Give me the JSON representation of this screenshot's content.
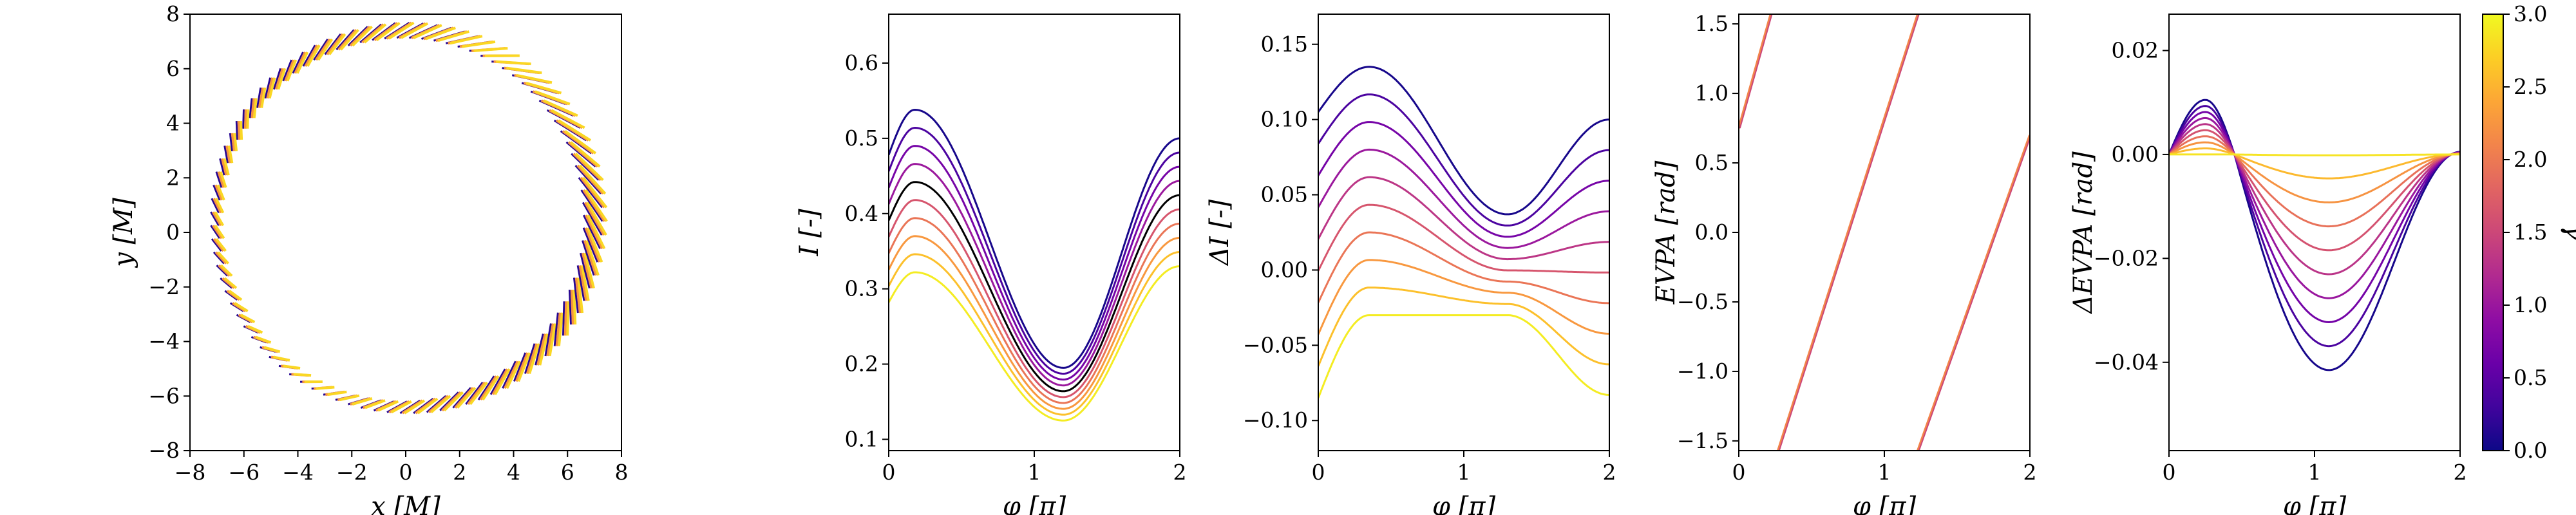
{
  "chart_data": [
    {
      "type": "scatter",
      "xlabel": "x [M]",
      "ylabel": "y [M]",
      "xlim": [
        -8,
        8
      ],
      "ylim": [
        -8,
        8
      ],
      "xticks": [
        -8,
        -6,
        -4,
        -2,
        0,
        2,
        4,
        6,
        8
      ],
      "yticks": [
        -8,
        -6,
        -4,
        -2,
        0,
        2,
        4,
        6,
        8
      ],
      "xtick_labels": [
        "−8",
        "−6",
        "−4",
        "−2",
        "0",
        "2",
        "4",
        "6",
        "8"
      ],
      "ytick_labels": [
        "−8",
        "−6",
        "−4",
        "−2",
        "0",
        "2",
        "4",
        "6",
        "8"
      ],
      "description_of_marks": "ring of polarization ticks around radius ~7 M, colored by gamma",
      "ring": {
        "cx": 0,
        "cy": 0.5,
        "rx": 7.0,
        "ry": 6.9,
        "ticks": 90
      }
    },
    {
      "type": "line",
      "xlabel": "φ [π]",
      "ylabel": "I [-]",
      "xlim": [
        0,
        2
      ],
      "ylim": [
        0.085,
        0.665
      ],
      "xticks": [
        0,
        1,
        2
      ],
      "yticks": [
        0.1,
        0.2,
        0.3,
        0.4,
        0.5,
        0.6
      ],
      "xtick_labels": [
        "0",
        "1",
        "2"
      ],
      "ytick_labels": [
        "0.1",
        "0.2",
        "0.3",
        "0.4",
        "0.5",
        "0.6"
      ],
      "series_params": {
        "peak_x": 0.18,
        "trough_x": 1.2,
        "peak_top": 0.538,
        "peak_bottom": 0.322,
        "trough_top": 0.195,
        "trough_bottom": 0.125,
        "end_top": 0.5,
        "end_bottom": 0.33
      }
    },
    {
      "type": "line",
      "xlabel": "φ [π]",
      "ylabel": "ΔI [-]",
      "xlim": [
        0,
        2
      ],
      "ylim": [
        -0.12,
        0.17
      ],
      "xticks": [
        0,
        1,
        2
      ],
      "yticks": [
        -0.1,
        -0.05,
        0.0,
        0.05,
        0.1,
        0.15
      ],
      "xtick_labels": [
        "0",
        "1",
        "2"
      ],
      "ytick_labels": [
        "−0.10",
        "−0.05",
        "0.00",
        "0.05",
        "0.10",
        "0.15"
      ],
      "series_params": {
        "start_top": 0.105,
        "start_bottom": -0.085,
        "mid_top": 0.135,
        "mid_bottom": -0.03,
        "dip_top": 0.037,
        "dip_bottom": -0.03,
        "end_top": 0.1,
        "end_bottom": -0.083
      }
    },
    {
      "type": "line",
      "xlabel": "φ [π]",
      "ylabel": "EVPA [rad]",
      "xlim": [
        0,
        2
      ],
      "ylim": [
        -1.57,
        1.57
      ],
      "xticks": [
        0,
        1,
        2
      ],
      "yticks": [
        -1.5,
        -1.0,
        -0.5,
        0.0,
        0.5,
        1.0,
        1.5
      ],
      "xtick_labels": [
        "0",
        "1",
        "2"
      ],
      "ytick_labels": [
        "−1.5",
        "−1.0",
        "−0.5",
        "0.0",
        "0.5",
        "1.0",
        "1.5"
      ],
      "segments": [
        {
          "x": [
            0.0,
            0.22
          ],
          "y": [
            0.75,
            1.57
          ]
        },
        {
          "x": [
            0.27,
            1.23
          ],
          "y": [
            -1.57,
            1.57
          ]
        },
        {
          "x": [
            1.23,
            2.0
          ],
          "y": [
            -1.57,
            0.7
          ]
        }
      ]
    },
    {
      "type": "line",
      "xlabel": "φ [π]",
      "ylabel": "ΔEVPA [rad]",
      "xlim": [
        0,
        2
      ],
      "ylim": [
        -0.057,
        0.027
      ],
      "xticks": [
        0,
        1,
        2
      ],
      "yticks": [
        -0.04,
        -0.02,
        0.0,
        0.02
      ],
      "xtick_labels": [
        "0",
        "1",
        "2"
      ],
      "ytick_labels": [
        "−0.04",
        "−0.02",
        "0.00",
        "0.02"
      ],
      "series_params": {
        "peak_x": 0.25,
        "peak_max": 0.0105,
        "zero_x": 0.45,
        "trough_x": 1.1,
        "trough_min": -0.0415
      }
    }
  ],
  "colorbar": {
    "label": "γ",
    "range": [
      0.0,
      3.0
    ],
    "ticks": [
      0.0,
      0.5,
      1.0,
      1.5,
      2.0,
      2.5,
      3.0
    ],
    "tick_labels": [
      "0.0",
      "0.5",
      "1.0",
      "1.5",
      "2.0",
      "2.5",
      "3.0"
    ],
    "colormap": "plasma",
    "stops": [
      "#0d0887",
      "#41049d",
      "#6a00a8",
      "#8f0da4",
      "#b12a90",
      "#cc4778",
      "#e16462",
      "#f2844b",
      "#fca636",
      "#fcce25",
      "#f0f921"
    ]
  }
}
